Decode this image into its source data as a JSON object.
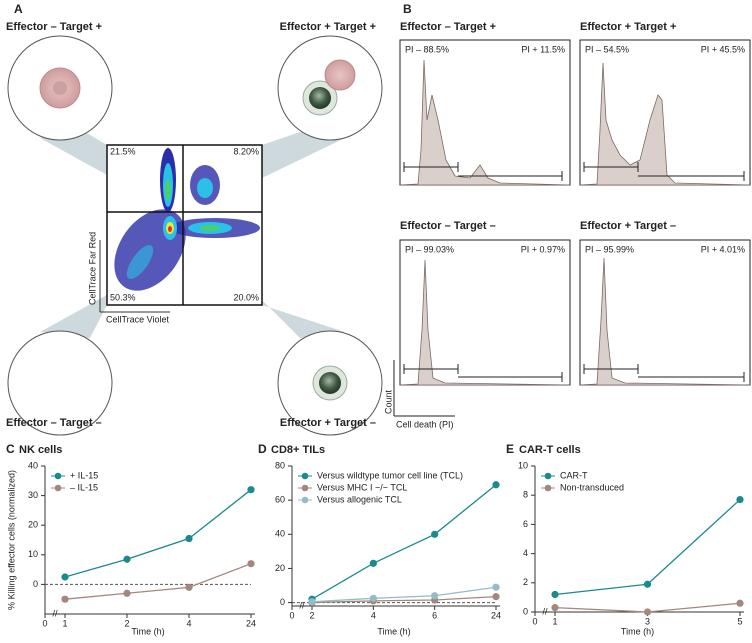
{
  "panel_a": {
    "label": "A",
    "quadrants": [
      {
        "title": "Effector – Target +",
        "percent": "21.5%"
      },
      {
        "title": "Effector + Target +",
        "percent": "8.20%"
      },
      {
        "title": "Effector – Target –",
        "percent": "50.3%"
      },
      {
        "title": "Effector + Target –",
        "percent": "20.0%"
      }
    ],
    "x_axis": "CellTrace Violet",
    "y_axis": "CellTrace Far Red"
  },
  "panel_b": {
    "label": "B",
    "histograms": [
      {
        "title": "Effector – Target +",
        "left": "PI – 88.5%",
        "right": "PI + 11.5%"
      },
      {
        "title": "Effector + Target +",
        "left": "PI – 54.5%",
        "right": "PI + 45.5%"
      },
      {
        "title": "Effector – Target –",
        "left": "PI – 99.03%",
        "right": "PI + 0.97%"
      },
      {
        "title": "Effector + Target –",
        "left": "PI – 95.99%",
        "right": "PI + 4.01%"
      }
    ],
    "y_axis": "Count",
    "x_axis": "Cell death (PI)"
  },
  "chart_data": [
    {
      "type": "line",
      "label": "C",
      "title": "NK cells",
      "ylabel": "% Killing effector cells (normalized)",
      "xlabel": "Time (h)",
      "categories": [
        "0",
        "1",
        "2",
        "4",
        "24"
      ],
      "series": [
        {
          "name": "+ IL-15",
          "color": "#1b8a8c",
          "values": [
            null,
            2.5,
            8.5,
            15.5,
            32
          ]
        },
        {
          "name": "– IL-15",
          "color": "#a3877f",
          "values": [
            null,
            -5,
            -3,
            -1,
            7
          ]
        }
      ],
      "ylim": [
        -10,
        40
      ],
      "yticks": [
        0,
        10,
        20,
        30,
        40
      ],
      "zero_line": true,
      "axis_break": true
    },
    {
      "type": "line",
      "label": "D",
      "title": "CD8+ TILs",
      "xlabel": "Time (h)",
      "categories": [
        "0",
        "2",
        "4",
        "6",
        "24"
      ],
      "series": [
        {
          "name": "Versus wildtype tumor cell line (TCL)",
          "color": "#1b8a8c",
          "values": [
            null,
            2,
            23,
            40,
            69
          ]
        },
        {
          "name": "Versus MHC I −/− TCL",
          "color": "#a3877f",
          "values": [
            null,
            0,
            1,
            1.5,
            3.5
          ]
        },
        {
          "name": "Versus allogenic TCL",
          "color": "#93bcc8",
          "values": [
            null,
            0.5,
            2.5,
            4,
            9
          ]
        }
      ],
      "ylim": [
        -2,
        80
      ],
      "yticks": [
        0,
        20,
        40,
        60,
        80
      ],
      "zero_line": true,
      "axis_break": true
    },
    {
      "type": "line",
      "label": "E",
      "title": "CAR-T cells",
      "xlabel": "Time (h)",
      "categories": [
        "0",
        "1",
        "3",
        "5"
      ],
      "series": [
        {
          "name": "CAR-T",
          "color": "#1b8a8c",
          "values": [
            null,
            1.2,
            1.9,
            7.7
          ]
        },
        {
          "name": "Non-transduced",
          "color": "#a3877f",
          "values": [
            null,
            0.3,
            0,
            0.6
          ]
        }
      ],
      "ylim": [
        0,
        10
      ],
      "yticks": [
        0,
        2,
        4,
        6,
        8,
        10
      ],
      "zero_line": false,
      "axis_break": true
    }
  ]
}
